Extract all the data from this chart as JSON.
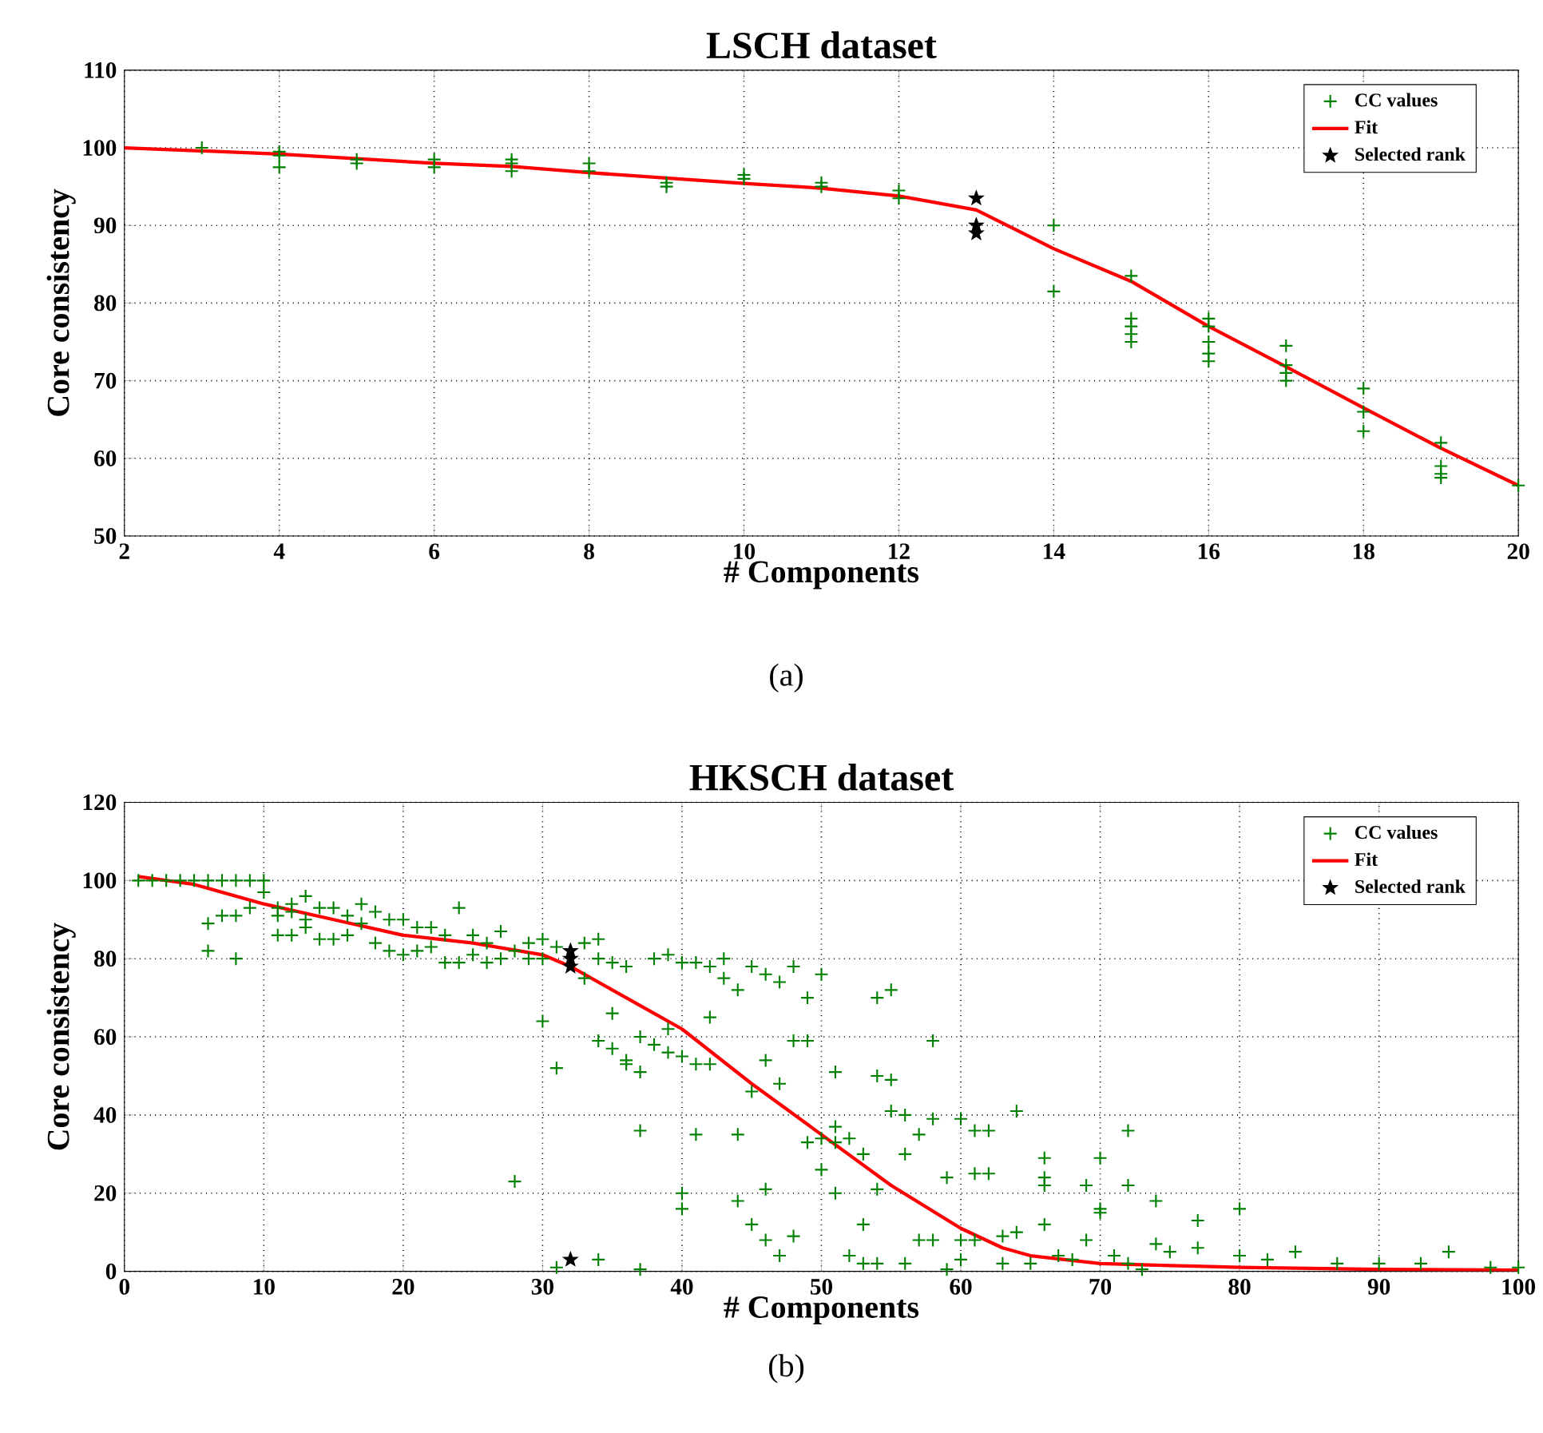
{
  "chart_data": [
    {
      "type": "scatter",
      "title": "LSCH dataset",
      "xlabel": "# Components",
      "ylabel": "Core consistency",
      "xlim": [
        2,
        20
      ],
      "ylim": [
        50,
        110
      ],
      "xticks": [
        2,
        4,
        6,
        8,
        10,
        12,
        14,
        16,
        18,
        20
      ],
      "yticks": [
        50,
        60,
        70,
        80,
        90,
        100,
        110
      ],
      "grid": true,
      "legend": "top right",
      "annotations": [
        "(a)"
      ],
      "series": [
        {
          "name": "CC values",
          "marker": "cross",
          "color": "#008000",
          "x": [
            3,
            4,
            4,
            4,
            5,
            5,
            6,
            6,
            7,
            7,
            7,
            8,
            8,
            9,
            9,
            10,
            10,
            11,
            11,
            12,
            12,
            14,
            14,
            15,
            15,
            15,
            15,
            15,
            16,
            16,
            16,
            16,
            16,
            17,
            17,
            17,
            17,
            18,
            18,
            18,
            19,
            19,
            19,
            19,
            20
          ],
          "values": [
            100,
            99.5,
            99,
            97.5,
            98.5,
            98,
            98.5,
            97.5,
            98.5,
            98,
            97,
            98,
            97,
            95.5,
            95,
            96.5,
            96,
            95,
            95.5,
            94.5,
            93.5,
            90,
            81.5,
            83.5,
            78,
            77,
            76,
            75,
            78,
            77,
            75,
            73.5,
            72.5,
            74.5,
            72,
            71,
            70,
            69,
            66,
            63.5,
            62,
            59,
            58,
            57.5,
            56.5
          ]
        },
        {
          "name": "Fit",
          "type": "line",
          "marker": "none",
          "color": "#ff0000",
          "x": [
            2,
            4,
            6,
            7,
            8,
            10,
            11,
            12,
            13,
            14,
            15,
            16,
            17,
            18,
            19,
            20
          ],
          "values": [
            100,
            99.2,
            98,
            97.6,
            96.8,
            95.4,
            94.8,
            93.8,
            92,
            87,
            82.8,
            77,
            71.8,
            66.5,
            61.3,
            56.5
          ]
        },
        {
          "name": "Selected rank",
          "marker": "star",
          "color": "#000000",
          "x": [
            13,
            13,
            13
          ],
          "values": [
            93.5,
            90,
            89
          ]
        }
      ]
    },
    {
      "type": "scatter",
      "title": "HKSCH dataset",
      "xlabel": "# Components",
      "ylabel": "Core consistency",
      "xlim": [
        0,
        100
      ],
      "ylim": [
        0,
        120
      ],
      "xticks": [
        0,
        10,
        20,
        30,
        40,
        50,
        60,
        70,
        80,
        90,
        100
      ],
      "yticks": [
        0,
        20,
        40,
        60,
        80,
        100,
        120
      ],
      "grid": true,
      "legend": "top right",
      "annotations": [
        "(b)"
      ],
      "series": [
        {
          "name": "CC values",
          "marker": "cross",
          "color": "#008000",
          "x": [
            1,
            2,
            3,
            4,
            5,
            6,
            7,
            8,
            9,
            10,
            6,
            6,
            7,
            8,
            8,
            9,
            10,
            11,
            11,
            11,
            12,
            12,
            12,
            13,
            13,
            13,
            14,
            14,
            15,
            15,
            16,
            16,
            17,
            17,
            18,
            18,
            19,
            19,
            20,
            20,
            21,
            21,
            22,
            22,
            23,
            23,
            24,
            24,
            25,
            25,
            26,
            26,
            27,
            27,
            28,
            28,
            29,
            29,
            30,
            30,
            30,
            31,
            31,
            31,
            33,
            33,
            34,
            34,
            34,
            34,
            35,
            35,
            35,
            36,
            36,
            36,
            37,
            37,
            37,
            37,
            38,
            38,
            39,
            39,
            39,
            40,
            40,
            40,
            40,
            41,
            41,
            41,
            42,
            42,
            42,
            43,
            43,
            44,
            44,
            44,
            45,
            45,
            45,
            46,
            46,
            46,
            46,
            47,
            47,
            47,
            48,
            48,
            48,
            49,
            49,
            49,
            50,
            50,
            50,
            51,
            51,
            51,
            51,
            52,
            52,
            53,
            53,
            53,
            54,
            54,
            54,
            54,
            55,
            55,
            55,
            56,
            56,
            56,
            57,
            57,
            58,
            58,
            58,
            59,
            59,
            60,
            60,
            60,
            61,
            61,
            61,
            62,
            62,
            63,
            63,
            64,
            64,
            65,
            66,
            66,
            66,
            66,
            67,
            68,
            69,
            69,
            70,
            70,
            70,
            71,
            72,
            72,
            72,
            73,
            74,
            74,
            75,
            77,
            77,
            80,
            80,
            82,
            84,
            87,
            90,
            93,
            95,
            98,
            100
          ],
          "values": [
            100,
            100,
            100,
            100,
            100,
            100,
            100,
            100,
            100,
            100,
            89,
            82,
            91,
            91,
            80,
            93,
            97,
            93,
            91,
            86,
            94,
            92,
            86,
            96,
            90,
            88,
            93,
            85,
            93,
            85,
            91,
            86,
            94,
            89,
            92,
            84,
            90,
            82,
            90,
            81,
            88,
            82,
            88,
            83,
            86,
            79,
            93,
            79,
            86,
            81,
            84,
            79,
            87,
            80,
            82,
            23,
            84,
            80,
            85,
            80,
            64,
            83,
            52,
            1,
            84,
            75,
            85,
            80,
            59,
            3,
            66,
            57,
            79,
            78,
            54,
            53,
            60,
            51,
            36,
            0.5,
            80,
            58,
            81,
            62,
            56,
            79,
            55,
            20,
            16,
            79,
            53,
            35,
            78,
            65,
            53,
            80,
            75,
            72,
            35,
            18,
            78,
            46,
            12,
            76,
            54,
            21,
            8,
            74,
            48,
            4,
            78,
            59,
            9,
            70,
            59,
            33,
            76,
            34,
            26,
            51,
            37,
            33,
            20,
            34,
            4,
            30,
            12,
            2,
            70,
            50,
            21,
            2,
            72,
            49,
            41,
            40,
            30,
            2,
            35,
            8,
            59,
            39,
            8,
            24,
            0.5,
            39,
            8,
            3,
            36,
            25,
            8,
            36,
            25,
            9,
            2,
            41,
            10,
            2,
            29,
            24,
            22,
            12,
            4,
            3,
            22,
            8,
            29,
            16,
            15,
            4,
            36,
            22,
            2,
            0.5,
            18,
            7,
            5,
            13,
            6,
            16,
            4,
            3,
            5,
            2,
            2,
            2,
            5,
            1,
            1
          ]
        },
        {
          "name": "Fit",
          "type": "line",
          "marker": "none",
          "color": "#ff0000",
          "x": [
            1,
            5,
            10,
            15,
            20,
            25,
            30,
            32,
            35,
            40,
            45,
            50,
            55,
            60,
            63,
            65,
            70,
            75,
            80,
            90,
            100
          ],
          "values": [
            101,
            99,
            94,
            90,
            86,
            84,
            81,
            78,
            72,
            62,
            48,
            35,
            22,
            11,
            6,
            4,
            2,
            1.5,
            1,
            0.5,
            0.3
          ]
        },
        {
          "name": "Selected rank",
          "marker": "star",
          "color": "#000000",
          "x": [
            32,
            32,
            32,
            32
          ],
          "values": [
            82,
            80,
            78,
            3
          ]
        }
      ]
    }
  ]
}
